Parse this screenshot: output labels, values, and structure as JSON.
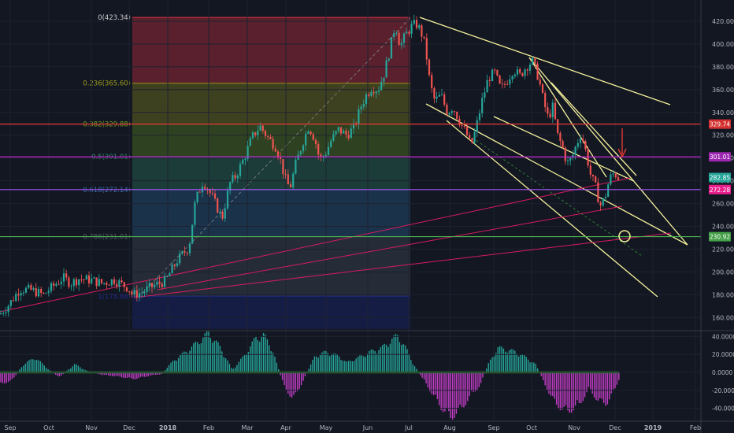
{
  "chart_data": {
    "type": "candlestick",
    "y_axis": {
      "ticks": [
        "420.00",
        "400.00",
        "380.00",
        "360.00",
        "340.00",
        "320.00",
        "300.00",
        "280.00",
        "260.00",
        "240.00",
        "220.00",
        "200.00",
        "180.00",
        "160.00"
      ],
      "ylim": [
        146,
        424
      ]
    },
    "x_axis": {
      "ticks": [
        "Sep",
        "Oct",
        "Nov",
        "Dec",
        "2018",
        "Feb",
        "Mar",
        "Apr",
        "May",
        "Jun",
        "Jul",
        "Aug",
        "Sep",
        "Oct",
        "Nov",
        "Dec",
        "2019",
        "Feb"
      ]
    },
    "fibonacci": {
      "levels": [
        {
          "label": "0(423.34)",
          "value": 423.34,
          "fill": "#f23645"
        },
        {
          "label": "0.236(365.60)",
          "value": 365.6,
          "fill": "#9c9c1a"
        },
        {
          "label": "0.382(329.88)",
          "value": 329.88,
          "fill": "#6a9e1f"
        },
        {
          "label": "0.5(301.01)",
          "value": 301.01,
          "fill": "#2e8c66"
        },
        {
          "label": "0.618(272.14)",
          "value": 272.14,
          "fill": "#2b6e9e"
        },
        {
          "label": "0.786(231.01)",
          "value": 231.01,
          "fill": "#4e5a66"
        },
        {
          "label": "1(178.68)",
          "value": 178.68,
          "fill": "#1f2a8f"
        }
      ],
      "bottom_value": 150
    },
    "price_labels": [
      {
        "text": "329.74",
        "value": 329.74,
        "color": "#d32f2f"
      },
      {
        "text": "301.01",
        "value": 301.01,
        "color": "#9c27b0"
      },
      {
        "text": "282.85",
        "value": 282.85,
        "color": "#26a69a"
      },
      {
        "text": "272.28",
        "value": 272.28,
        "color": "#e91e8c"
      },
      {
        "text": "230.92",
        "value": 230.92,
        "color": "#43a047"
      }
    ],
    "horizontal_lines": [
      {
        "value": 329.74,
        "color": "#e53935"
      },
      {
        "value": 301.01,
        "color": "#c026d3"
      },
      {
        "value": 272.28,
        "color": "#a855f7"
      },
      {
        "value": 231.01,
        "color": "#4caf50"
      }
    ],
    "price_path": [
      [
        0,
        163
      ],
      [
        12,
        172
      ],
      [
        25,
        185
      ],
      [
        40,
        184
      ],
      [
        55,
        180
      ],
      [
        65,
        186
      ],
      [
        80,
        195
      ],
      [
        90,
        190
      ],
      [
        100,
        194
      ],
      [
        115,
        193
      ],
      [
        130,
        190
      ],
      [
        145,
        193
      ],
      [
        155,
        189
      ],
      [
        163,
        186
      ],
      [
        168,
        180
      ],
      [
        180,
        182
      ],
      [
        195,
        188
      ],
      [
        210,
        192
      ],
      [
        225,
        210
      ],
      [
        240,
        222
      ],
      [
        248,
        262
      ],
      [
        258,
        280
      ],
      [
        270,
        265
      ],
      [
        282,
        247
      ],
      [
        292,
        278
      ],
      [
        300,
        285
      ],
      [
        310,
        300
      ],
      [
        320,
        318
      ],
      [
        330,
        328
      ],
      [
        340,
        318
      ],
      [
        350,
        310
      ],
      [
        356,
        298
      ],
      [
        362,
        282
      ],
      [
        368,
        273
      ],
      [
        376,
        296
      ],
      [
        385,
        315
      ],
      [
        392,
        328
      ],
      [
        400,
        316
      ],
      [
        406,
        298
      ],
      [
        414,
        305
      ],
      [
        420,
        315
      ],
      [
        430,
        325
      ],
      [
        440,
        320
      ],
      [
        450,
        327
      ],
      [
        458,
        345
      ],
      [
        465,
        355
      ],
      [
        472,
        362
      ],
      [
        480,
        360
      ],
      [
        488,
        375
      ],
      [
        495,
        395
      ],
      [
        502,
        418
      ],
      [
        508,
        398
      ],
      [
        515,
        408
      ],
      [
        522,
        415
      ],
      [
        528,
        418
      ],
      [
        534,
        412
      ],
      [
        540,
        398
      ],
      [
        546,
        365
      ],
      [
        552,
        350
      ],
      [
        560,
        355
      ],
      [
        568,
        340
      ],
      [
        575,
        345
      ],
      [
        585,
        330
      ],
      [
        592,
        322
      ],
      [
        598,
        310
      ],
      [
        604,
        325
      ],
      [
        612,
        350
      ],
      [
        620,
        370
      ],
      [
        628,
        375
      ],
      [
        636,
        360
      ],
      [
        644,
        368
      ],
      [
        652,
        378
      ],
      [
        660,
        372
      ],
      [
        668,
        380
      ],
      [
        676,
        385
      ],
      [
        684,
        370
      ],
      [
        690,
        350
      ],
      [
        696,
        335
      ],
      [
        702,
        345
      ],
      [
        708,
        320
      ],
      [
        714,
        310
      ],
      [
        720,
        295
      ],
      [
        726,
        300
      ],
      [
        732,
        312
      ],
      [
        738,
        322
      ],
      [
        744,
        305
      ],
      [
        750,
        285
      ],
      [
        756,
        275
      ],
      [
        762,
        258
      ],
      [
        768,
        265
      ],
      [
        774,
        282
      ],
      [
        780,
        287
      ],
      [
        786,
        282
      ]
    ],
    "macd": {
      "ticks": [
        "40.0000",
        "20.0000",
        "0.0000",
        "-20.0000",
        "-40.0000"
      ],
      "ylim": [
        -55,
        48
      ]
    }
  }
}
